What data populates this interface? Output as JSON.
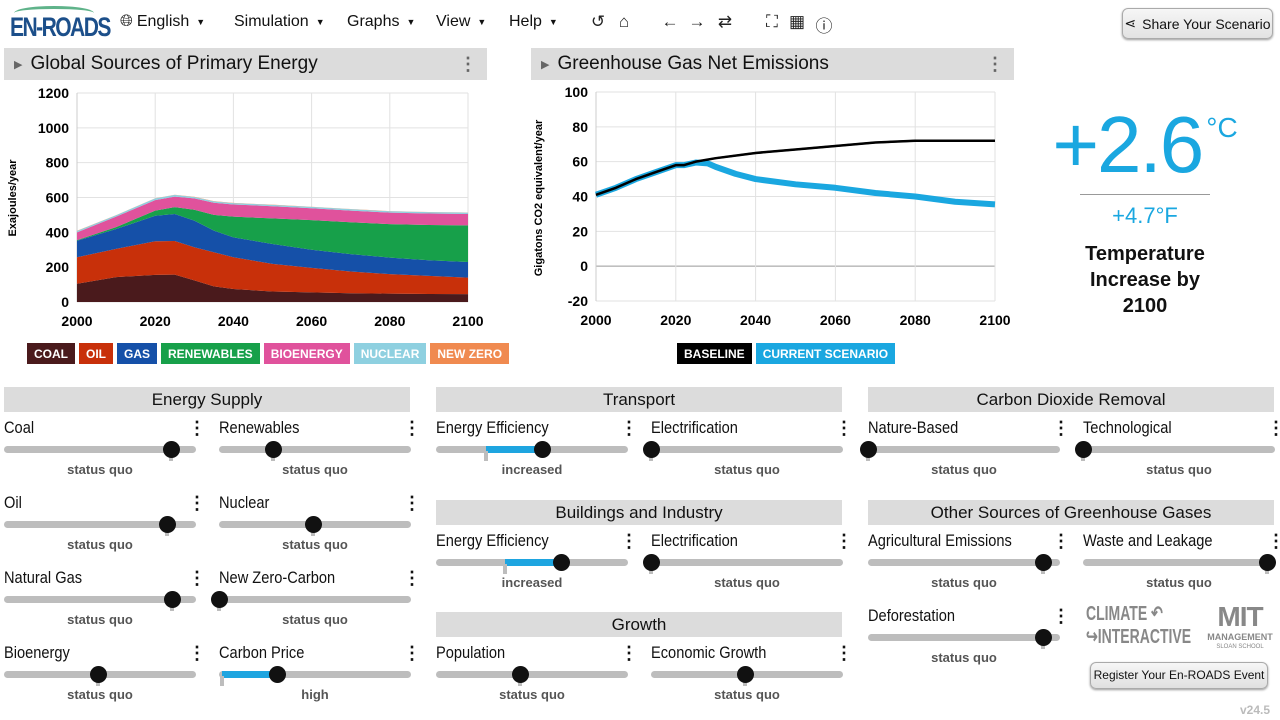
{
  "header": {
    "logo": "EN-ROADS",
    "menus": [
      {
        "label": "English",
        "icon": "globe-icon"
      },
      {
        "label": "Simulation"
      },
      {
        "label": "Graphs"
      },
      {
        "label": "View"
      },
      {
        "label": "Help"
      }
    ],
    "tools": [
      {
        "name": "undo-icon",
        "glyph": "↺"
      },
      {
        "name": "home-icon",
        "glyph": "⌂"
      },
      {
        "name": "back-arrow-icon",
        "glyph": "←"
      },
      {
        "name": "forward-arrow-icon",
        "glyph": "→"
      },
      {
        "name": "refresh-icon",
        "glyph": "⇄"
      },
      {
        "name": "fullscreen-icon",
        "glyph": "⛶"
      },
      {
        "name": "grid-icon",
        "glyph": "▦"
      },
      {
        "name": "info-icon",
        "glyph": "ⓘ"
      }
    ],
    "share_label": "Share Your Scenario"
  },
  "panels": {
    "left_title": "Global Sources of Primary Energy",
    "right_title": "Greenhouse Gas Net Emissions"
  },
  "chart_data": [
    {
      "type": "area",
      "stacked": true,
      "title": "Global Sources of Primary Energy",
      "ylabel": "Exajoules/year",
      "ylim": [
        0,
        1200
      ],
      "xlim": [
        2000,
        2100
      ],
      "yticks": [
        "0",
        "200",
        "400",
        "600",
        "800",
        "1000",
        "1200"
      ],
      "xticks": [
        "2000",
        "2020",
        "2040",
        "2060",
        "2080",
        "2100"
      ],
      "grid": true,
      "legend": "bottom",
      "x": [
        2000,
        2010,
        2020,
        2025,
        2030,
        2035,
        2040,
        2050,
        2060,
        2070,
        2080,
        2090,
        2100
      ],
      "series": [
        {
          "name": "COAL",
          "color": "#4a1a1c",
          "values": [
            105,
            143,
            156,
            157,
            124,
            90,
            75,
            60,
            55,
            50,
            48,
            46,
            45
          ]
        },
        {
          "name": "OIL",
          "color": "#c8300a",
          "values": [
            152,
            162,
            193,
            193,
            190,
            196,
            182,
            159,
            141,
            125,
            112,
            104,
            95
          ]
        },
        {
          "name": "GAS",
          "color": "#1550a8",
          "values": [
            95,
            114,
            146,
            155,
            153,
            124,
            114,
            114,
            104,
            100,
            95,
            90,
            90
          ]
        },
        {
          "name": "RENEWABLES",
          "color": "#17a04a",
          "values": [
            3,
            11,
            30,
            40,
            63,
            90,
            119,
            147,
            170,
            183,
            192,
            202,
            210
          ]
        },
        {
          "name": "BIOENERGY",
          "color": "#e0529c",
          "values": [
            45,
            60,
            60,
            60,
            65,
            70,
            70,
            70,
            68,
            67,
            66,
            66,
            65
          ]
        },
        {
          "name": "NUCLEAR",
          "color": "#8ed0e0",
          "values": [
            8,
            8,
            10,
            10,
            8,
            8,
            8,
            8,
            8,
            8,
            8,
            8,
            8
          ]
        },
        {
          "name": "NEW ZERO",
          "color": "#f08a50",
          "values": [
            1,
            1,
            1,
            1,
            1,
            1,
            1,
            1,
            1,
            1,
            1,
            1,
            1
          ]
        }
      ]
    },
    {
      "type": "line",
      "title": "Greenhouse Gas Net Emissions",
      "ylabel": "Gigatons CO2 equivalent/year",
      "ylim": [
        -20,
        100
      ],
      "xlim": [
        2000,
        2100
      ],
      "yticks": [
        "-20",
        "0",
        "20",
        "40",
        "60",
        "80",
        "100"
      ],
      "xticks": [
        "2000",
        "2020",
        "2040",
        "2060",
        "2080",
        "2100"
      ],
      "grid": true,
      "legend": "bottom",
      "series": [
        {
          "name": "BASELINE",
          "color": "#000000",
          "x": [
            2000,
            2005,
            2010,
            2015,
            2020,
            2022,
            2025,
            2030,
            2040,
            2050,
            2060,
            2070,
            2080,
            2090,
            2100
          ],
          "values": [
            41,
            45,
            50,
            54,
            58,
            58,
            60,
            62,
            65,
            67,
            69,
            71,
            72,
            72,
            72
          ]
        },
        {
          "name": "CURRENT SCENARIO",
          "color": "#1aa7e0",
          "x": [
            2000,
            2005,
            2010,
            2015,
            2020,
            2022,
            2025,
            2028,
            2030,
            2035,
            2040,
            2050,
            2060,
            2070,
            2080,
            2090,
            2100
          ],
          "values": [
            41,
            45,
            50,
            54,
            58,
            58,
            59.5,
            59,
            57,
            53,
            50,
            47,
            45,
            42,
            40,
            37,
            35.5
          ]
        }
      ]
    }
  ],
  "temperature": {
    "celsius": "+2.6",
    "celsius_unit": "°C",
    "fahrenheit": "+4.7°F",
    "caption": "Temperature Increase by 2100",
    "color": "#1aa7e0"
  },
  "sections": [
    {
      "title": "Energy Supply",
      "sliders": [
        {
          "label": "Coal",
          "status": "status quo",
          "value": 0.87,
          "default": 0.87
        },
        {
          "label": "Renewables",
          "status": "status quo",
          "value": 0.28,
          "default": 0.28
        },
        {
          "label": "Oil",
          "status": "status quo",
          "value": 0.85,
          "default": 0.85
        },
        {
          "label": "Nuclear",
          "status": "status quo",
          "value": 0.49,
          "default": 0.49
        },
        {
          "label": "Natural Gas",
          "status": "status quo",
          "value": 0.875,
          "default": 0.875
        },
        {
          "label": "New Zero-Carbon",
          "status": "status quo",
          "value": 0,
          "default": 0
        },
        {
          "label": "Bioenergy",
          "status": "status quo",
          "value": 0.49,
          "default": 0.49
        },
        {
          "label": "Carbon Price",
          "status": "high",
          "value": 0.3,
          "default": 0.015
        }
      ]
    },
    {
      "title": "Transport",
      "sliders": [
        {
          "label": "Energy Efficiency",
          "status": "increased",
          "value": 0.55,
          "default": 0.26
        },
        {
          "label": "Electrification",
          "status": "status quo",
          "value": 0,
          "default": 0
        }
      ]
    },
    {
      "title": "Buildings and Industry",
      "sliders": [
        {
          "label": "Energy Efficiency",
          "status": "increased",
          "value": 0.65,
          "default": 0.36
        },
        {
          "label": "Electrification",
          "status": "status quo",
          "value": 0,
          "default": 0
        }
      ]
    },
    {
      "title": "Growth",
      "sliders": [
        {
          "label": "Population",
          "status": "status quo",
          "value": 0.44,
          "default": 0.44
        },
        {
          "label": "Economic Growth",
          "status": "status quo",
          "value": 0.49,
          "default": 0.49
        }
      ]
    },
    {
      "title": "Carbon Dioxide Removal",
      "sliders": [
        {
          "label": "Nature-Based",
          "status": "status quo",
          "value": 0,
          "default": 0
        },
        {
          "label": "Technological",
          "status": "status quo",
          "value": 0,
          "default": 0
        }
      ]
    },
    {
      "title": "Other Sources of Greenhouse Gases",
      "sliders": [
        {
          "label": "Agricultural Emissions",
          "status": "status quo",
          "value": 0.91,
          "default": 0.91
        },
        {
          "label": "Waste and Leakage",
          "status": "status quo",
          "value": 0.96,
          "default": 0.96
        },
        {
          "label": "Deforestation",
          "status": "status quo",
          "value": 0.91,
          "default": 0.91
        }
      ]
    }
  ],
  "footer": {
    "climate_logo": "CLIMATE INTERACTIVE",
    "mit_logo": "MIT MANAGEMENT SLOAN SCHOOL",
    "register_label": "Register Your En-ROADS Event",
    "version": "v24.5"
  }
}
